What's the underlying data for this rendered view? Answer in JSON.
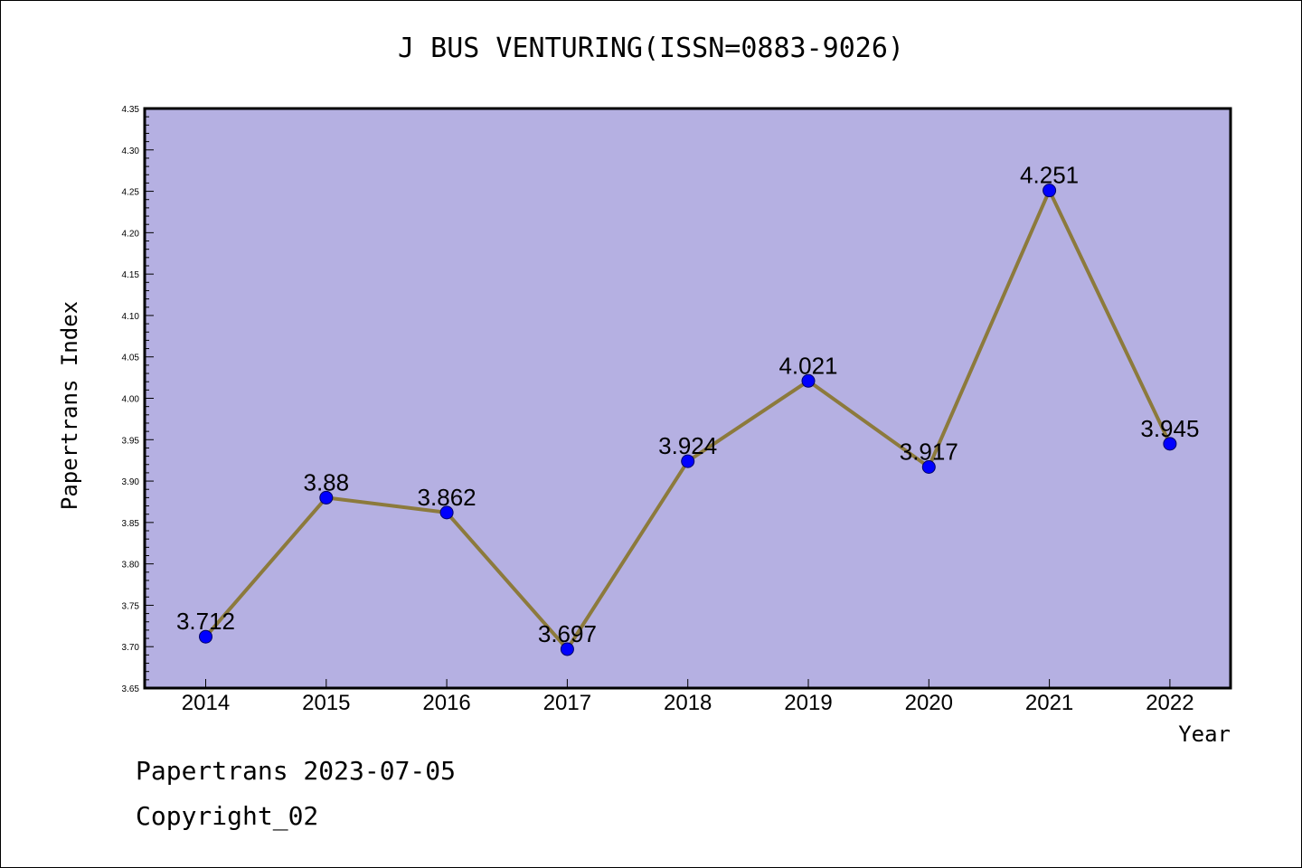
{
  "title": "J BUS VENTURING(ISSN=0883-9026)",
  "footer": {
    "line1": "Papertrans 2023-07-05",
    "line2": "Copyright_02"
  },
  "colors": {
    "plot_background": "#b5b0e2",
    "line": "#8c7a3c",
    "marker": "#0000ff"
  },
  "chart_data": {
    "type": "line",
    "title": "J BUS VENTURING(ISSN=0883-9026)",
    "xlabel": "Year",
    "ylabel": "Papertrans Index",
    "categories": [
      "2014",
      "2015",
      "2016",
      "2017",
      "2018",
      "2019",
      "2020",
      "2021",
      "2022"
    ],
    "values": [
      3.712,
      3.88,
      3.862,
      3.697,
      3.924,
      4.021,
      3.917,
      4.251,
      3.945
    ],
    "data_labels": [
      "3.712",
      "3.88",
      "3.862",
      "3.697",
      "3.924",
      "4.021",
      "3.917",
      "4.251",
      "3.945"
    ],
    "ylim": [
      3.65,
      4.35
    ],
    "yticks": [
      "3.65",
      "3.70",
      "3.75",
      "3.80",
      "3.85",
      "3.90",
      "3.95",
      "4.00",
      "4.05",
      "4.10",
      "4.15",
      "4.20",
      "4.25",
      "4.30",
      "4.35"
    ],
    "grid": false,
    "legend": "none"
  }
}
